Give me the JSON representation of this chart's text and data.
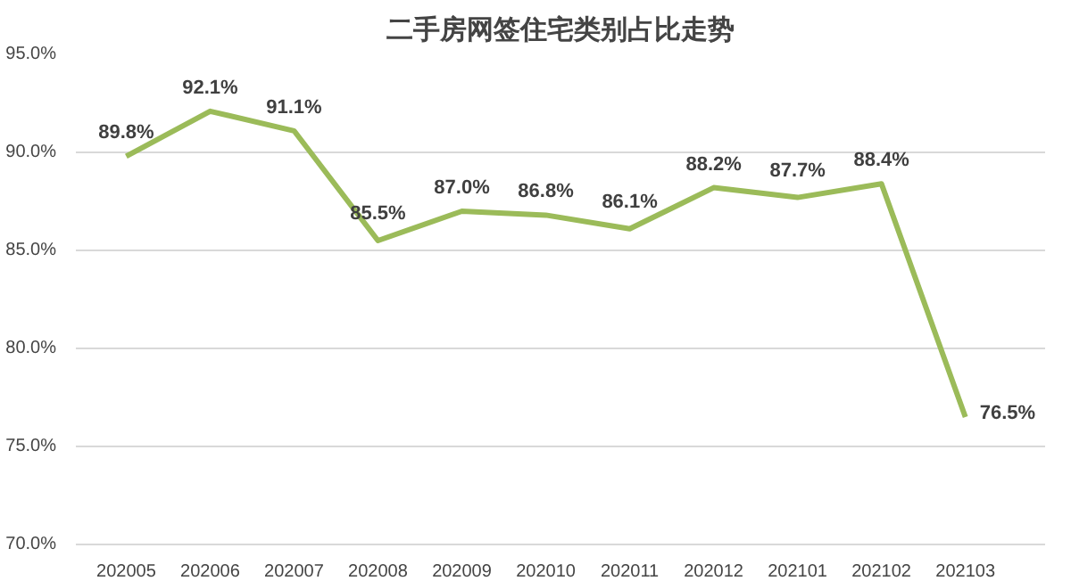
{
  "chart_data": {
    "type": "line",
    "title": "二手房网签住宅类别占比走势",
    "categories": [
      "202005",
      "202006",
      "202007",
      "202008",
      "202009",
      "202010",
      "202011",
      "202012",
      "202101",
      "202102",
      "202103"
    ],
    "series": [
      {
        "color": "#9bbb59",
        "values": [
          89.8,
          92.1,
          91.1,
          85.5,
          87.0,
          86.8,
          86.1,
          88.2,
          87.7,
          88.4,
          76.5
        ],
        "value_labels": [
          "89.8%",
          "92.1%",
          "91.1%",
          "85.5%",
          "87.0%",
          "86.8%",
          "86.1%",
          "88.2%",
          "87.7%",
          "88.4%",
          "76.5%"
        ]
      }
    ],
    "ylim": [
      70,
      95
    ],
    "yticks": [
      {
        "value": 70,
        "label": "70.0%"
      },
      {
        "value": 75,
        "label": "75.0%"
      },
      {
        "value": 80,
        "label": "80.0%"
      },
      {
        "value": 85,
        "label": "85.0%"
      },
      {
        "value": 90,
        "label": "90.0%"
      },
      {
        "value": 95,
        "label": "95.0%"
      }
    ],
    "grid": "y",
    "marker": "none",
    "line_style": "solid"
  }
}
